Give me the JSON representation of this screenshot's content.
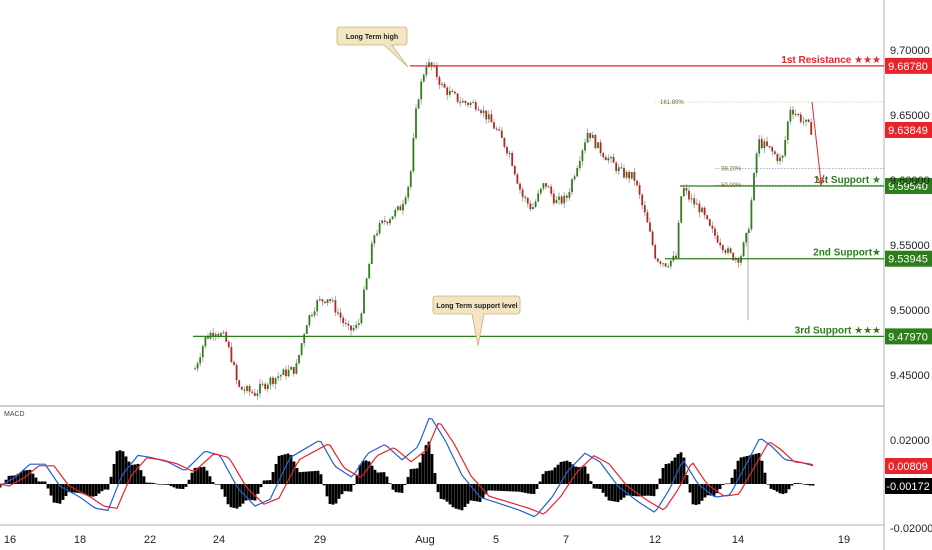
{
  "chart_data": {
    "type": "candlestick",
    "price_axis": {
      "range": [
        9.435,
        9.74
      ],
      "ticks": [
        "9.70000",
        "9.65000",
        "9.60000",
        "9.55000",
        "9.50000",
        "9.45000"
      ],
      "tick_values": [
        9.7,
        9.65,
        9.6,
        9.55,
        9.5,
        9.45
      ]
    },
    "time_axis": {
      "labels": [
        "16",
        "18",
        "22",
        "24",
        "29",
        "Aug",
        "5",
        "7",
        "12",
        "14",
        "19"
      ]
    },
    "levels": [
      {
        "name": "1st Resistance ★★★",
        "value": 9.6878,
        "label": "9.68780",
        "color": "#e8232a"
      },
      {
        "name": "1st Support ★",
        "value": 9.5954,
        "label": "9.59540",
        "color": "#2e7d1c"
      },
      {
        "name": "2nd Support★",
        "value": 9.53945,
        "label": "9.53945",
        "color": "#2e7d1c"
      },
      {
        "name": "3rd Support ★★★",
        "value": 9.4797,
        "label": "9.47970",
        "color": "#2e7d1c"
      }
    ],
    "current_price": {
      "value": 9.63849,
      "label": "9.63849",
      "color": "#e8232a"
    },
    "fib_levels": [
      {
        "label": "161.80%",
        "value": 9.66
      },
      {
        "label": "38.20%",
        "value": 9.609
      },
      {
        "label": "50.00%",
        "value": 9.596
      }
    ],
    "annotations": [
      {
        "text": "Long Term high"
      },
      {
        "text": "Long Term support level"
      }
    ],
    "macd": {
      "title": "MACD",
      "range": [
        -0.022,
        0.03
      ],
      "ticks": [
        "0.02000",
        "-0.02000"
      ],
      "tick_values": [
        0.02,
        -0.02
      ],
      "macd_value": {
        "label": "0.00809",
        "color": "#e8232a"
      },
      "hist_value": {
        "label": "-0.00172",
        "color": "#000000"
      }
    },
    "grid": false,
    "legend": "none"
  }
}
